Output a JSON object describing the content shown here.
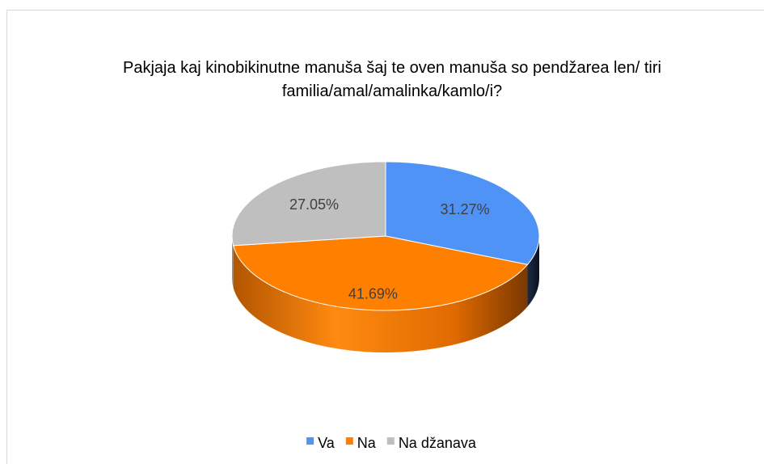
{
  "chart_data": {
    "type": "pie",
    "title": "Pakjaja kaj kinobikinutne manuša šaj te oven manuša so pendžarea len/ tiri familia/amal/amalinka/kamlo/i?",
    "categories": [
      "Va",
      "Na",
      "Na džanava"
    ],
    "values": [
      31.27,
      41.69,
      27.05
    ],
    "value_labels": [
      "31.27%",
      "41.69%",
      "27.05%"
    ],
    "colors": [
      "#4f93f6",
      "#ff7f00",
      "#bfbfbf"
    ],
    "legend": "bottom"
  }
}
